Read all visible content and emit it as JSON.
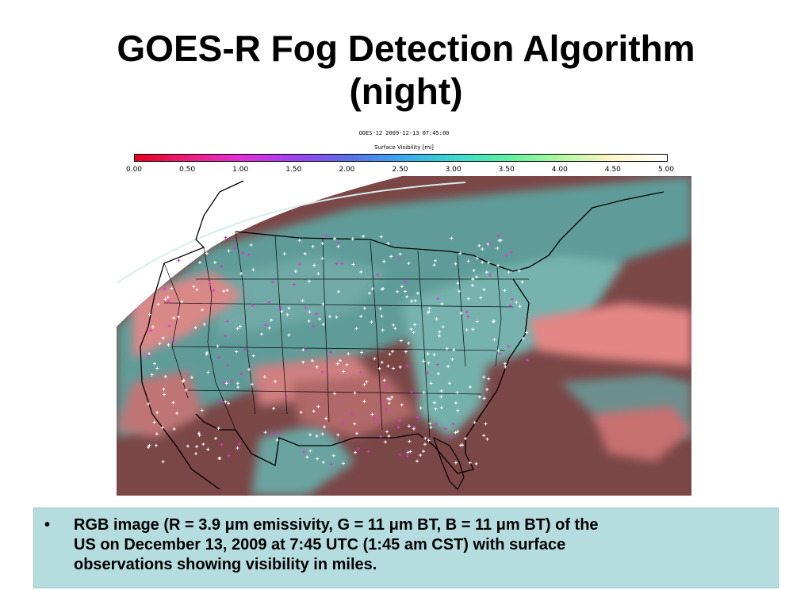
{
  "slide": {
    "title_lines": [
      "GOES-R Fog Detection Algorithm",
      "(night)"
    ]
  },
  "figure": {
    "header": "GOES-12 2009-12-13 07:45:00",
    "colorbar_title": "Surface Visibility [mi]",
    "colorbar_ticks": [
      "0.00",
      "0.50",
      "1.00",
      "1.50",
      "2.00",
      "2.50",
      "3.00",
      "3.50",
      "4.00",
      "4.50",
      "5.00"
    ],
    "colorbar_colors": [
      "#e8001c",
      "#f01c7a",
      "#e030d8",
      "#a040f0",
      "#5a6ee8",
      "#3aa8ee",
      "#3ad8d0",
      "#5cf0a0",
      "#b0f8a0",
      "#fff6c8",
      "#ffffff"
    ]
  },
  "caption": {
    "bullet": "•",
    "lines": [
      "RGB image (R = 3.9 μm emissivity, G = 11 μm BT, B = 11 μm BT) of the",
      "US on December 13, 2009 at 7:45 UTC (1:45 am CST) with surface",
      "observations showing visibility in miles."
    ]
  },
  "colors": {
    "caption_bg": "#b5dde0",
    "map_cloud_teal": "#6aa8a4",
    "map_fog_pink": "#e07878",
    "map_clear_red": "#8a4a4a",
    "obs_marker": "#ffffff",
    "low_vis_marker": "#e030d8"
  }
}
